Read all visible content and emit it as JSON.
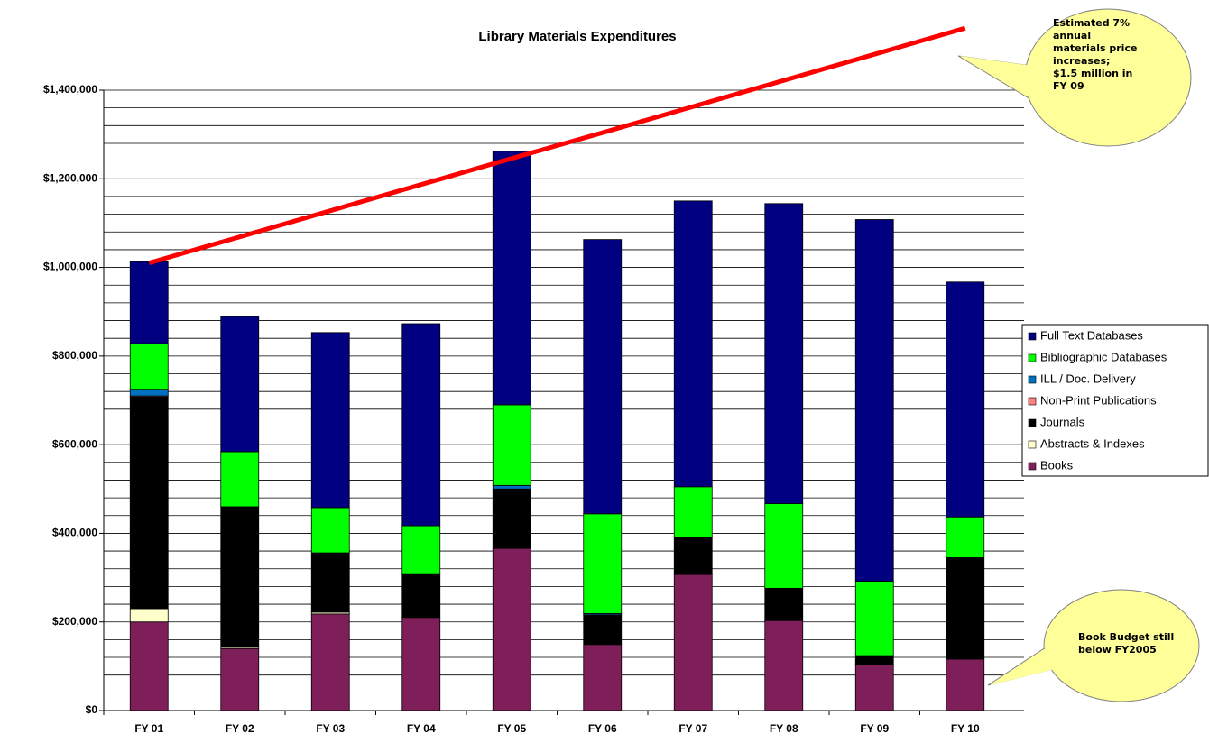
{
  "chart_data": {
    "type": "stacked_bar",
    "title": "Library Materials Expenditures",
    "categories": [
      "FY 01",
      "FY 02",
      "FY 03",
      "FY 04",
      "FY 05",
      "FY 06",
      "FY 07",
      "FY 08",
      "FY 09",
      "FY 10"
    ],
    "series": [
      {
        "name": "Books",
        "color": "#7f1f5a",
        "values": [
          200000,
          140000,
          218000,
          210000,
          366000,
          149000,
          307000,
          203000,
          104000,
          116000
        ]
      },
      {
        "name": "Abstracts & Indexes",
        "color": "#ffffcc",
        "values": [
          30000,
          3000,
          4000,
          0,
          0,
          0,
          0,
          0,
          0,
          0
        ]
      },
      {
        "name": "Journals",
        "color": "#000000",
        "values": [
          478000,
          317000,
          134000,
          97000,
          134000,
          67000,
          83000,
          73000,
          20000,
          229000
        ]
      },
      {
        "name": "Non-Print Publications",
        "color": "#ff8080",
        "values": [
          2000,
          0,
          0,
          0,
          0,
          0,
          0,
          0,
          0,
          0
        ]
      },
      {
        "name": "ILL / Doc. Delivery",
        "color": "#0070c0",
        "values": [
          15000,
          0,
          0,
          0,
          8000,
          3000,
          0,
          0,
          0,
          0
        ]
      },
      {
        "name": "Bibliographic Databases",
        "color": "#00ff00",
        "values": [
          103000,
          124000,
          102000,
          110000,
          182000,
          225000,
          115000,
          191000,
          168000,
          92000
        ]
      },
      {
        "name": "Full Text Databases",
        "color": "#000080",
        "values": [
          185000,
          305000,
          395000,
          456000,
          572000,
          619000,
          645000,
          677000,
          816000,
          530000
        ]
      }
    ],
    "trend_line": {
      "color": "#ff0000",
      "values": [
        1010000,
        1069000,
        1128000,
        1187000,
        1246000,
        1304000,
        1363000,
        1422000,
        1481000,
        1540000
      ]
    },
    "ylim": [
      0,
      1400000
    ],
    "yticks": [
      {
        "value": 0,
        "label": "$0"
      },
      {
        "value": 200000,
        "label": "$200,000"
      },
      {
        "value": 400000,
        "label": "$400,000"
      },
      {
        "value": 600000,
        "label": "$600,000"
      },
      {
        "value": 800000,
        "label": "$800,000"
      },
      {
        "value": 1000000,
        "label": "$1,000,000"
      },
      {
        "value": 1200000,
        "label": "$1,200,000"
      },
      {
        "value": 1400000,
        "label": "$1,400,000"
      }
    ],
    "minor_yticks": [
      40000,
      80000,
      120000,
      160000,
      240000,
      280000,
      320000,
      360000,
      440000,
      480000,
      520000,
      560000,
      640000,
      680000,
      720000,
      760000,
      840000,
      880000,
      920000,
      960000,
      1040000,
      1080000,
      1120000,
      1160000,
      1240000,
      1280000,
      1320000,
      1360000
    ],
    "grid": true,
    "legend": "right",
    "annotations": [
      {
        "lines": [
          "Estimated 7%",
          "annual",
          "materials price",
          "increases;",
          "$1.5 million in",
          "FY 09"
        ]
      },
      {
        "lines": [
          "Book Budget still",
          "below FY2005"
        ]
      }
    ]
  }
}
